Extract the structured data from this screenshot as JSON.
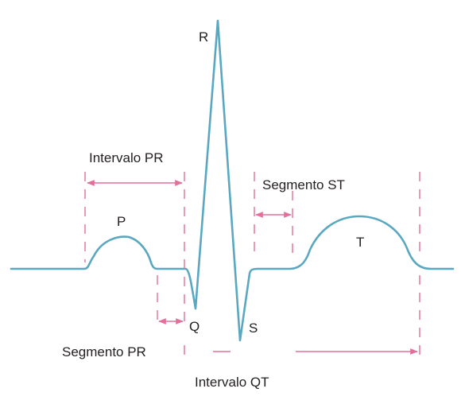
{
  "colors": {
    "wave": "#5aa8c0",
    "marker": "#e2709a",
    "text": "#231f20"
  },
  "labels": {
    "p": "P",
    "q": "Q",
    "r": "R",
    "s": "S",
    "t": "T",
    "intervalo_pr": "Intervalo PR",
    "segmento_st": "Segmento ST",
    "segmento_pr": "Segmento PR",
    "intervalo_qt": "Intervalo QT"
  }
}
